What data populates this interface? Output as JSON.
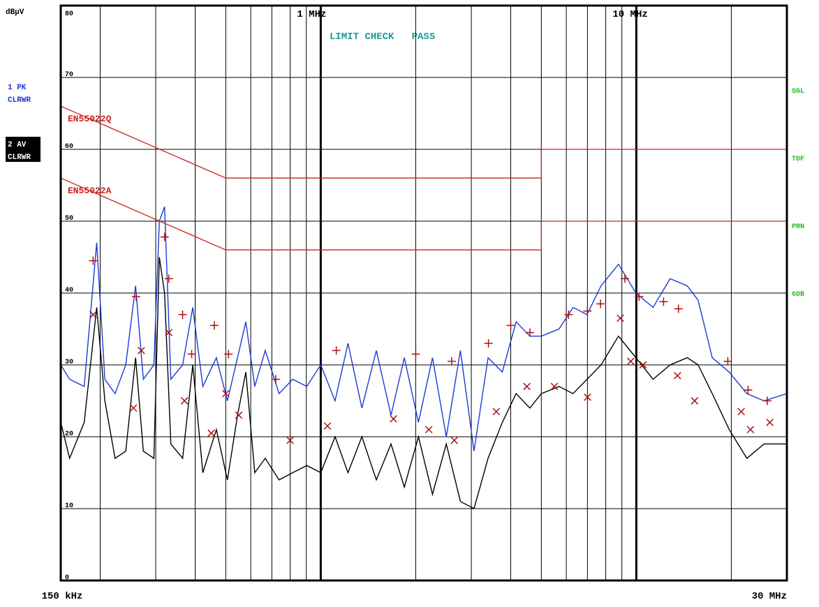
{
  "chart_data": {
    "type": "line",
    "xscale": "log",
    "unit": "dBµV",
    "status": "LIMIT CHECK   PASS",
    "status_flags": [
      "SGL",
      "TDF",
      "PRN",
      "6DB"
    ],
    "xlim": [
      0.15,
      30
    ],
    "ylim": [
      0,
      80
    ],
    "xticks": [
      {
        "value": 0.15,
        "label": "150 kHz"
      },
      {
        "value": 1,
        "label": "1 MHz"
      },
      {
        "value": 10,
        "label": "10 MHz"
      },
      {
        "value": 30,
        "label": "30 MHz"
      }
    ],
    "xgrid": [
      0.2,
      0.3,
      0.4,
      0.5,
      0.6,
      0.7,
      0.8,
      0.9,
      1,
      2,
      3,
      4,
      5,
      6,
      7,
      8,
      9,
      10,
      20
    ],
    "yticks": [
      0,
      10,
      20,
      30,
      40,
      50,
      60,
      70,
      80
    ],
    "grid": true,
    "series": [
      {
        "name": "EN55022Q",
        "color": "#cc2020",
        "x": [
          0.15,
          0.5,
          5,
          5,
          30
        ],
        "values": [
          66,
          56,
          56,
          60,
          60
        ]
      },
      {
        "name": "EN55022A",
        "color": "#cc2020",
        "x": [
          0.15,
          0.5,
          5,
          5,
          30
        ],
        "values": [
          56,
          46,
          46,
          50,
          50
        ]
      },
      {
        "name": "1 PK",
        "mode": "CLRWR",
        "color": "#1a3ad8",
        "x": [
          0.15,
          0.16,
          0.178,
          0.195,
          0.207,
          0.223,
          0.241,
          0.259,
          0.274,
          0.296,
          0.308,
          0.32,
          0.335,
          0.365,
          0.393,
          0.423,
          0.467,
          0.506,
          0.545,
          0.579,
          0.618,
          0.667,
          0.738,
          0.815,
          0.903,
          1.0,
          1.11,
          1.22,
          1.35,
          1.5,
          1.67,
          1.84,
          2.04,
          2.26,
          2.5,
          2.77,
          3.06,
          3.39,
          3.76,
          4.16,
          4.6,
          5.0,
          5.69,
          6.3,
          6.98,
          7.73,
          8.78,
          9.97,
          11.3,
          12.8,
          14.5,
          15.7,
          17.4,
          19.7,
          22.4,
          25.4,
          30.0
        ],
        "values": [
          30,
          28,
          27,
          47,
          28,
          26,
          30,
          41,
          28,
          30,
          50,
          52,
          28,
          30,
          38,
          27,
          31,
          25,
          31,
          36,
          27,
          32,
          26,
          28,
          27,
          30,
          25,
          33,
          24,
          32,
          23,
          31,
          22,
          31,
          20,
          32,
          18,
          31,
          29,
          36,
          34,
          34,
          35,
          38,
          37,
          41,
          44,
          40,
          38,
          42,
          41,
          39,
          31,
          29,
          26,
          25,
          26
        ]
      },
      {
        "name": "2 AV",
        "mode": "CLRWR",
        "color": "#000000",
        "x": [
          0.15,
          0.16,
          0.178,
          0.195,
          0.207,
          0.223,
          0.241,
          0.259,
          0.274,
          0.296,
          0.308,
          0.32,
          0.335,
          0.365,
          0.393,
          0.423,
          0.467,
          0.506,
          0.545,
          0.579,
          0.618,
          0.667,
          0.738,
          0.815,
          0.903,
          1.0,
          1.11,
          1.22,
          1.35,
          1.5,
          1.67,
          1.84,
          2.04,
          2.26,
          2.5,
          2.77,
          3.06,
          3.39,
          3.76,
          4.16,
          4.6,
          5.0,
          5.69,
          6.3,
          6.98,
          7.73,
          8.78,
          9.97,
          11.3,
          12.8,
          14.5,
          15.7,
          17.4,
          19.7,
          22.4,
          25.4,
          30.0
        ],
        "values": [
          22,
          17,
          22,
          38,
          25,
          17,
          18,
          31,
          18,
          17,
          45,
          40,
          19,
          17,
          30,
          15,
          21,
          14,
          23,
          29,
          15,
          17,
          14,
          15,
          16,
          15,
          20,
          15,
          20,
          14,
          19,
          13,
          20,
          12,
          19,
          11,
          10,
          17,
          22,
          26,
          24,
          26,
          27,
          26,
          28,
          30,
          34,
          31,
          28,
          30,
          31,
          30,
          26,
          21,
          17,
          19,
          19
        ]
      },
      {
        "marker": "+",
        "color": "#aa1010",
        "x": [
          0.19,
          0.26,
          0.32,
          0.33,
          0.365,
          0.39,
          0.46,
          0.51,
          0.72,
          1.12,
          2.0,
          2.6,
          3.4,
          4.0,
          4.6,
          6.1,
          7.0,
          7.7,
          9.2,
          10.2,
          12.2,
          13.6,
          19.5,
          22.6,
          26
        ],
        "values": [
          44.5,
          39.5,
          47.8,
          42,
          37,
          31.5,
          35.5,
          31.5,
          28,
          32,
          31.5,
          30.5,
          33,
          35.5,
          34.5,
          37,
          37.5,
          38.5,
          42,
          39.5,
          38.8,
          37.8,
          30.5,
          26.5,
          25
        ]
      },
      {
        "marker": "x",
        "color": "#aa1010",
        "x": [
          0.19,
          0.255,
          0.27,
          0.33,
          0.37,
          0.45,
          0.5,
          0.55,
          0.8,
          1.05,
          1.7,
          2.2,
          2.65,
          3.6,
          4.5,
          5.5,
          7.0,
          8.9,
          9.6,
          10.5,
          13.5,
          15.3,
          21.5,
          23,
          26.5
        ],
        "values": [
          37,
          24,
          32,
          34.5,
          25,
          20.5,
          26,
          23,
          19.5,
          21.5,
          22.5,
          21,
          19.5,
          23.5,
          27,
          27,
          25.5,
          36.5,
          30.5,
          30,
          28.5,
          25,
          23.5,
          21,
          22
        ]
      }
    ]
  }
}
